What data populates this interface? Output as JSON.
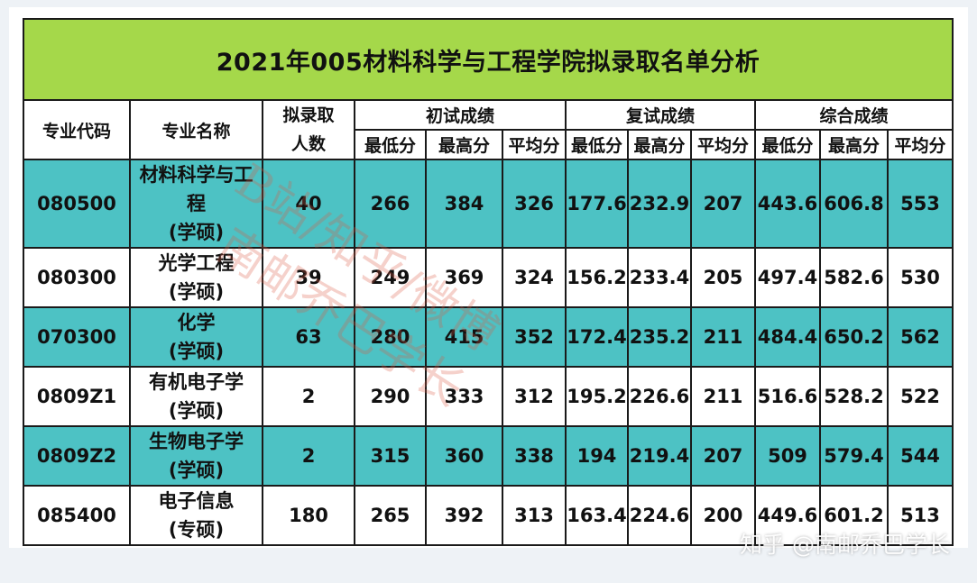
{
  "title": "2021年005材料科学与工程学院拟录取名单分析",
  "headers": {
    "code": "专业代码",
    "name": "专业名称",
    "admit_line1": "拟录取",
    "admit_line2": "人数",
    "initial": "初试成绩",
    "retest": "复试成绩",
    "overall": "综合成绩",
    "min": "最低分",
    "max": "最高分",
    "avg": "平均分"
  },
  "rows": [
    {
      "code": "080500",
      "name1": "材料科学与工程",
      "name2": "(学硕)",
      "count": "40",
      "init_min": "266",
      "init_max": "384",
      "init_avg": "326",
      "re_min": "177.6",
      "re_max": "232.9",
      "re_avg": "207",
      "tot_min": "443.6",
      "tot_max": "606.8",
      "tot_avg": "553"
    },
    {
      "code": "080300",
      "name1": "光学工程",
      "name2": "(学硕)",
      "count": "39",
      "init_min": "249",
      "init_max": "369",
      "init_avg": "324",
      "re_min": "156.2",
      "re_max": "233.4",
      "re_avg": "205",
      "tot_min": "497.4",
      "tot_max": "582.6",
      "tot_avg": "530"
    },
    {
      "code": "070300",
      "name1": "化学",
      "name2": "(学硕)",
      "count": "63",
      "init_min": "280",
      "init_max": "415",
      "init_avg": "352",
      "re_min": "172.4",
      "re_max": "235.2",
      "re_avg": "211",
      "tot_min": "484.4",
      "tot_max": "650.2",
      "tot_avg": "562"
    },
    {
      "code": "0809Z1",
      "name1": "有机电子学",
      "name2": "(学硕)",
      "count": "2",
      "init_min": "290",
      "init_max": "333",
      "init_avg": "312",
      "re_min": "195.2",
      "re_max": "226.6",
      "re_avg": "211",
      "tot_min": "516.6",
      "tot_max": "528.2",
      "tot_avg": "522"
    },
    {
      "code": "0809Z2",
      "name1": "生物电子学",
      "name2": "(学硕)",
      "count": "2",
      "init_min": "315",
      "init_max": "360",
      "init_avg": "338",
      "re_min": "194",
      "re_max": "219.4",
      "re_avg": "207",
      "tot_min": "509",
      "tot_max": "579.4",
      "tot_avg": "544"
    },
    {
      "code": "085400",
      "name1": "电子信息",
      "name2": "(专硕)",
      "count": "180",
      "init_min": "265",
      "init_max": "392",
      "init_avg": "313",
      "re_min": "163.4",
      "re_max": "224.6",
      "re_avg": "200",
      "tot_min": "449.6",
      "tot_max": "601.2",
      "tot_avg": "513"
    }
  ],
  "watermark_line1": "B站/知乎/微博",
  "watermark_line2": "南邮乔巴学长",
  "footer": "知乎 @南邮乔巴学长",
  "colors": {
    "title_bg": "#a5d84a",
    "teal_row": "#4dc2c4",
    "white_row": "#ffffff"
  }
}
